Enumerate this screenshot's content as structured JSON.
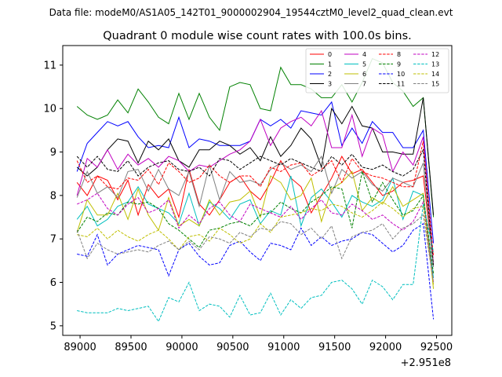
{
  "header": {
    "data_file": "Data file: modeM0/AS1A05_142T01_9000002904_19544cztM0_level2_quad_clean.evt"
  },
  "chart_data": {
    "type": "line",
    "title": "Quadrant 0 module wise count rates with 100.0s bins.",
    "xlabel": "",
    "ylabel": "",
    "x_offset_label": "+2.951e8",
    "xlim": [
      88830,
      92650
    ],
    "ylim": [
      4.78,
      11.45
    ],
    "xticks": [
      89000,
      89500,
      90000,
      90500,
      91000,
      91500,
      92000,
      92500
    ],
    "yticks": [
      5,
      6,
      7,
      8,
      9,
      10,
      11
    ],
    "legend_position": "top-right",
    "x": [
      88970,
      89070,
      89170,
      89270,
      89370,
      89470,
      89570,
      89670,
      89770,
      89870,
      89970,
      90070,
      90170,
      90270,
      90370,
      90470,
      90570,
      90670,
      90770,
      90870,
      90970,
      91070,
      91170,
      91270,
      91370,
      91470,
      91570,
      91670,
      91770,
      91870,
      91970,
      92070,
      92170,
      92270,
      92370,
      92470
    ],
    "series": [
      {
        "name": "0",
        "color": "#ff0000",
        "dash": "solid",
        "values": [
          8.3,
          8.0,
          8.45,
          8.35,
          7.9,
          8.35,
          7.55,
          8.25,
          7.95,
          8.15,
          7.5,
          8.6,
          7.8,
          7.55,
          7.9,
          8.3,
          8.45,
          8.1,
          7.9,
          8.3,
          8.8,
          8.4,
          8.2,
          7.6,
          8.0,
          8.4,
          8.9,
          8.5,
          8.6,
          8.3,
          8.0,
          8.1,
          8.3,
          8.35,
          8.45,
          6.4
        ]
      },
      {
        "name": "1",
        "color": "#008000",
        "dash": "solid",
        "values": [
          10.05,
          9.85,
          9.75,
          9.85,
          10.2,
          9.9,
          10.45,
          10.15,
          9.8,
          9.65,
          10.35,
          9.75,
          10.35,
          9.8,
          9.5,
          10.5,
          10.6,
          10.55,
          10.0,
          9.95,
          10.95,
          10.55,
          10.55,
          10.45,
          10.25,
          10.25,
          10.55,
          10.15,
          10.6,
          11.15,
          11.05,
          10.6,
          10.4,
          10.05,
          10.25,
          7.5
        ]
      },
      {
        "name": "2",
        "color": "#0000ff",
        "dash": "solid",
        "values": [
          8.55,
          9.2,
          9.45,
          9.7,
          9.6,
          9.7,
          9.35,
          9.1,
          9.15,
          9.1,
          9.8,
          9.1,
          9.3,
          9.25,
          9.15,
          9.15,
          9.15,
          9.25,
          9.75,
          9.6,
          9.75,
          9.55,
          9.95,
          9.9,
          9.85,
          10.15,
          9.15,
          9.55,
          9.2,
          9.7,
          9.45,
          9.45,
          9.1,
          9.1,
          9.5,
          6.9
        ]
      },
      {
        "name": "3",
        "color": "#000000",
        "dash": "solid",
        "values": [
          8.65,
          8.45,
          8.65,
          9.05,
          9.3,
          9.25,
          8.75,
          9.25,
          9.05,
          9.3,
          8.8,
          8.65,
          9.05,
          9.05,
          9.25,
          9.15,
          8.95,
          9.1,
          8.8,
          9.35,
          8.9,
          9.15,
          9.55,
          9.3,
          8.65,
          10.0,
          9.65,
          10.05,
          9.6,
          9.55,
          9.0,
          9.0,
          8.95,
          8.95,
          10.25,
          7.55
        ]
      },
      {
        "name": "4",
        "color": "#c000c0",
        "dash": "solid",
        "values": [
          8.0,
          8.85,
          8.65,
          9.05,
          8.6,
          8.95,
          8.7,
          8.85,
          8.65,
          8.9,
          8.8,
          8.55,
          8.7,
          8.65,
          8.8,
          8.95,
          9.05,
          9.25,
          9.75,
          9.15,
          9.55,
          9.7,
          9.8,
          9.6,
          9.95,
          9.1,
          9.1,
          9.85,
          8.9,
          9.55,
          9.4,
          8.55,
          9.0,
          8.7,
          9.35,
          6.4
        ]
      },
      {
        "name": "5",
        "color": "#00bfbf",
        "dash": "solid",
        "values": [
          7.45,
          7.75,
          7.3,
          7.45,
          7.75,
          7.85,
          8.2,
          7.8,
          7.7,
          7.6,
          7.35,
          8.05,
          7.3,
          7.85,
          7.7,
          7.45,
          7.8,
          7.9,
          7.35,
          7.65,
          7.55,
          8.45,
          7.3,
          7.95,
          8.15,
          7.85,
          7.5,
          8.0,
          7.85,
          7.75,
          7.9,
          8.4,
          7.45,
          8.1,
          8.0,
          6.1
        ]
      },
      {
        "name": "6",
        "color": "#bfbf00",
        "dash": "solid",
        "values": [
          7.15,
          7.9,
          7.55,
          7.55,
          8.05,
          7.45,
          8.15,
          7.55,
          7.2,
          7.95,
          7.3,
          7.45,
          7.3,
          7.9,
          7.55,
          7.85,
          7.9,
          8.1,
          7.5,
          8.45,
          8.3,
          7.9,
          8.0,
          8.4,
          7.4,
          8.15,
          8.3,
          8.55,
          7.65,
          7.95,
          7.8,
          8.2,
          7.75,
          7.9,
          8.05,
          5.85
        ]
      },
      {
        "name": "7",
        "color": "#808080",
        "dash": "solid",
        "values": [
          7.95,
          8.55,
          8.05,
          8.2,
          7.95,
          8.55,
          8.6,
          8.1,
          8.6,
          8.15,
          8.0,
          8.55,
          7.75,
          8.7,
          7.9,
          8.55,
          8.3,
          8.35,
          8.25,
          8.6,
          8.75,
          8.6,
          8.7,
          8.55,
          8.9,
          8.05,
          8.6,
          8.4,
          8.55,
          8.25,
          8.1,
          8.4,
          8.3,
          8.2,
          8.75,
          6.35
        ]
      },
      {
        "name": "8",
        "color": "#ff0000",
        "dash": "dashed",
        "values": [
          8.8,
          8.3,
          8.45,
          8.2,
          8.15,
          8.4,
          8.35,
          8.6,
          8.25,
          8.75,
          8.55,
          8.3,
          8.4,
          8.7,
          8.45,
          8.3,
          8.45,
          8.45,
          8.2,
          8.65,
          8.55,
          8.7,
          8.75,
          8.45,
          8.6,
          8.8,
          8.3,
          8.85,
          8.55,
          8.45,
          8.4,
          8.3,
          8.2,
          8.2,
          9.25,
          6.6
        ]
      },
      {
        "name": "9",
        "color": "#008000",
        "dash": "dashed",
        "values": [
          7.15,
          7.5,
          7.4,
          7.6,
          7.55,
          7.85,
          7.8,
          7.85,
          7.7,
          7.35,
          7.2,
          7.0,
          6.8,
          7.2,
          7.25,
          7.35,
          7.4,
          7.3,
          7.55,
          7.6,
          7.85,
          7.7,
          7.6,
          7.85,
          8.0,
          8.2,
          8.15,
          7.25,
          8.55,
          7.85,
          8.3,
          7.9,
          7.55,
          7.65,
          8.0,
          6.2
        ]
      },
      {
        "name": "10",
        "color": "#0000ff",
        "dash": "dashed",
        "values": [
          6.65,
          6.6,
          7.1,
          6.4,
          6.65,
          6.75,
          6.85,
          6.8,
          6.75,
          6.15,
          6.75,
          6.9,
          6.6,
          6.4,
          6.45,
          6.85,
          6.95,
          6.7,
          6.5,
          6.9,
          6.85,
          6.75,
          7.25,
          6.85,
          7.05,
          6.85,
          6.95,
          7.0,
          7.15,
          7.1,
          6.9,
          6.7,
          6.85,
          7.2,
          7.35,
          5.15
        ]
      },
      {
        "name": "11",
        "color": "#000000",
        "dash": "dashed",
        "values": [
          8.9,
          8.65,
          8.9,
          8.6,
          8.55,
          8.8,
          8.45,
          8.65,
          8.75,
          8.8,
          8.6,
          8.55,
          8.65,
          8.45,
          8.85,
          8.8,
          8.6,
          8.75,
          8.9,
          8.8,
          8.7,
          8.85,
          8.75,
          8.65,
          8.55,
          8.9,
          8.7,
          8.95,
          8.65,
          8.6,
          8.7,
          8.55,
          8.45,
          8.6,
          9.05,
          6.4
        ]
      },
      {
        "name": "12",
        "color": "#c000c0",
        "dash": "dashed",
        "values": [
          7.8,
          7.9,
          8.05,
          7.7,
          7.55,
          7.8,
          7.95,
          7.6,
          7.7,
          7.9,
          7.25,
          7.55,
          7.35,
          7.7,
          7.85,
          7.55,
          7.4,
          7.8,
          7.7,
          7.6,
          7.5,
          7.75,
          7.45,
          7.7,
          7.9,
          7.6,
          7.55,
          7.8,
          7.65,
          7.45,
          7.55,
          7.35,
          7.2,
          7.4,
          7.85,
          6.0
        ]
      },
      {
        "name": "13",
        "color": "#00bfbf",
        "dash": "dashed",
        "values": [
          5.35,
          5.3,
          5.3,
          5.3,
          5.4,
          5.35,
          5.4,
          5.45,
          5.1,
          5.65,
          5.55,
          6.0,
          5.35,
          5.5,
          5.45,
          5.2,
          5.7,
          5.25,
          5.3,
          5.75,
          5.25,
          5.6,
          5.4,
          5.65,
          5.7,
          6.0,
          6.05,
          5.85,
          5.5,
          6.05,
          5.9,
          5.6,
          5.95,
          5.95,
          7.8,
          6.7
        ]
      },
      {
        "name": "14",
        "color": "#bfbf00",
        "dash": "dashed",
        "values": [
          7.1,
          7.05,
          7.25,
          7.0,
          7.2,
          7.05,
          6.95,
          7.1,
          7.2,
          7.0,
          6.75,
          7.05,
          7.1,
          6.95,
          7.25,
          7.1,
          6.9,
          7.0,
          7.35,
          7.15,
          7.5,
          7.55,
          7.6,
          7.7,
          7.65,
          7.8,
          7.75,
          7.6,
          7.5,
          7.65,
          7.85,
          7.7,
          7.5,
          7.7,
          7.75,
          5.95
        ]
      },
      {
        "name": "15",
        "color": "#808080",
        "dash": "dashed",
        "values": [
          7.2,
          6.55,
          6.9,
          6.75,
          6.65,
          6.7,
          6.75,
          6.7,
          6.85,
          6.95,
          6.75,
          6.95,
          6.75,
          7.05,
          7.0,
          6.9,
          7.15,
          7.05,
          7.25,
          7.2,
          7.4,
          7.35,
          7.1,
          7.25,
          7.0,
          7.3,
          6.55,
          7.05,
          7.15,
          7.2,
          7.35,
          7.0,
          7.25,
          7.35,
          7.55,
          6.0
        ]
      }
    ]
  }
}
